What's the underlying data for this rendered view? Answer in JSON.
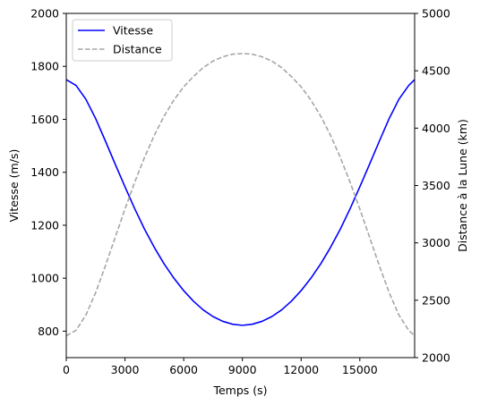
{
  "chart_data": {
    "type": "line",
    "title": "",
    "xlabel": "Temps (s)",
    "ylabel": "Vitesse (m/s)",
    "ylabel_right": "Distance à la Lune (km)",
    "xlim": [
      0,
      17800
    ],
    "ylim": [
      700,
      2000
    ],
    "ylim_right": [
      2000,
      5000
    ],
    "x_ticks": [
      0,
      3000,
      6000,
      9000,
      12000,
      15000
    ],
    "y_ticks": [
      800,
      1000,
      1200,
      1400,
      1600,
      1800,
      2000
    ],
    "y_ticks_right": [
      2000,
      2500,
      3000,
      3500,
      4000,
      4500,
      5000
    ],
    "grid": false,
    "legend_position": "upper-left",
    "series": [
      {
        "name": "Vitesse",
        "axis": "left",
        "color": "#0000ff",
        "style": "solid",
        "x": [
          0,
          500,
          1000,
          1500,
          2000,
          2500,
          3000,
          3500,
          4000,
          4500,
          5000,
          5500,
          6000,
          6500,
          7000,
          7500,
          8000,
          8500,
          9000,
          9500,
          10000,
          10500,
          11000,
          11500,
          12000,
          12500,
          13000,
          13500,
          14000,
          14500,
          15000,
          15500,
          16000,
          16500,
          17000,
          17500,
          17800
        ],
        "values": [
          1750,
          1728,
          1676,
          1603,
          1518,
          1431,
          1345,
          1262,
          1185,
          1116,
          1054,
          1000,
          953,
          913,
          880,
          855,
          837,
          826,
          822,
          826,
          837,
          855,
          880,
          913,
          953,
          1000,
          1054,
          1116,
          1185,
          1262,
          1345,
          1431,
          1518,
          1603,
          1676,
          1728,
          1750
        ]
      },
      {
        "name": "Distance",
        "axis": "right",
        "color": "#a6a6a6",
        "style": "dashed",
        "x": [
          0,
          500,
          1000,
          1500,
          2000,
          2500,
          3000,
          3500,
          4000,
          4500,
          5000,
          5500,
          6000,
          6500,
          7000,
          7500,
          8000,
          8500,
          9000,
          9500,
          10000,
          10500,
          11000,
          11500,
          12000,
          12500,
          13000,
          13500,
          14000,
          14500,
          15000,
          15500,
          16000,
          16500,
          17000,
          17500,
          17800
        ],
        "values": [
          2190,
          2238,
          2370,
          2566,
          2800,
          3048,
          3295,
          3530,
          3746,
          3938,
          4105,
          4245,
          4360,
          4450,
          4528,
          4585,
          4622,
          4645,
          4650,
          4645,
          4622,
          4585,
          4528,
          4450,
          4360,
          4245,
          4105,
          3938,
          3746,
          3530,
          3295,
          3048,
          2800,
          2566,
          2370,
          2238,
          2190
        ]
      }
    ]
  }
}
